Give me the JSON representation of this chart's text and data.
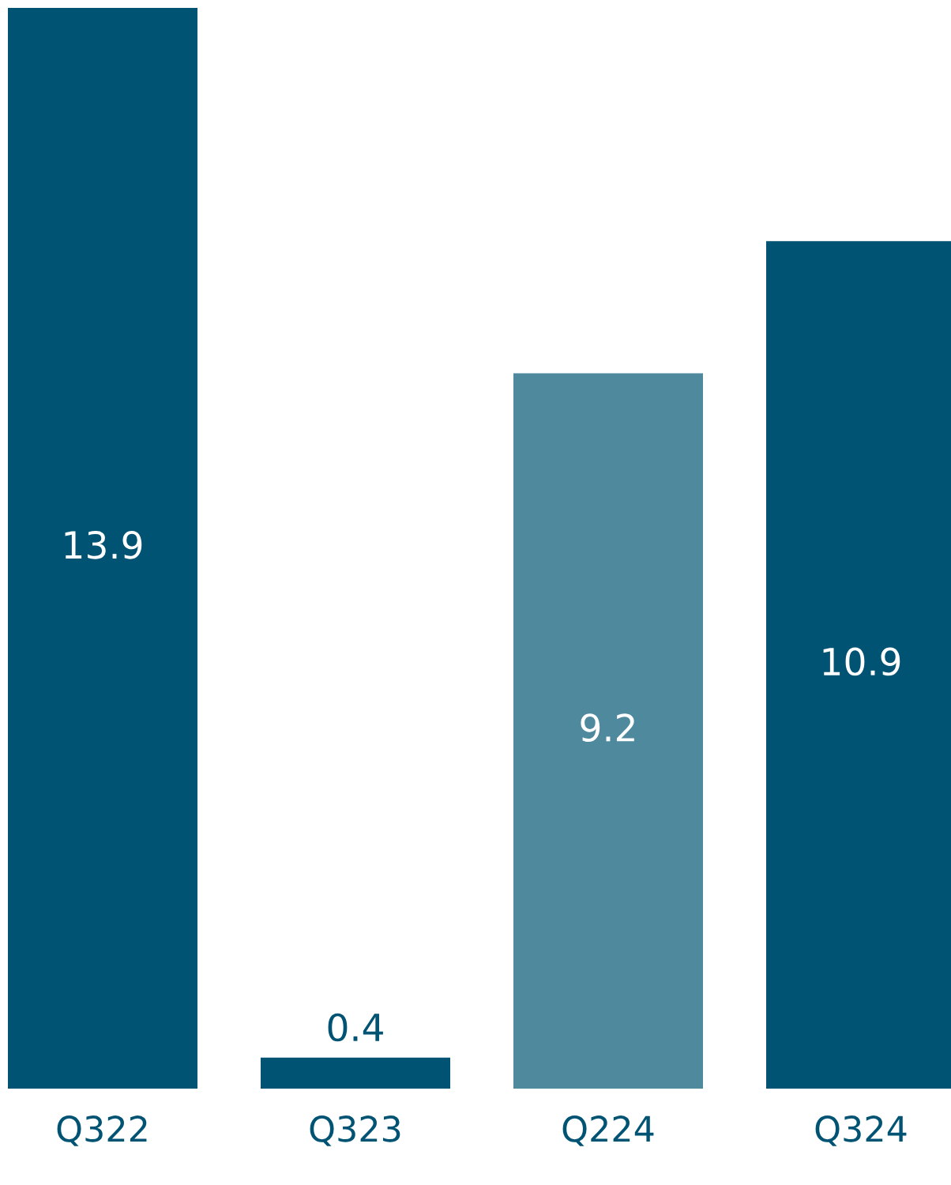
{
  "chart_data": {
    "type": "bar",
    "categories": [
      "Q322",
      "Q323",
      "Q224",
      "Q324"
    ],
    "values": [
      13.9,
      0.4,
      9.2,
      10.9
    ],
    "colors": [
      "#005373",
      "#005373",
      "#4f899e",
      "#005373"
    ],
    "data_labels": true,
    "grid": false,
    "legend": false
  }
}
